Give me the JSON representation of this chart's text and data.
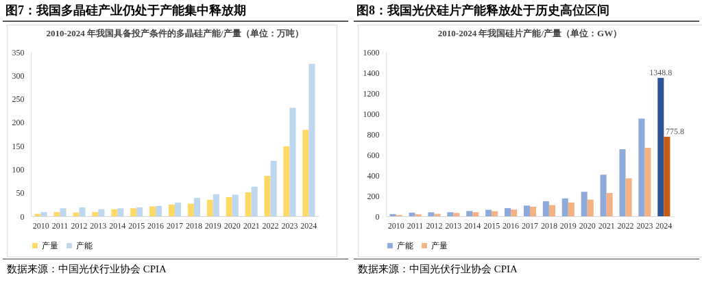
{
  "chart_data": [
    {
      "type": "bar",
      "title": "图7：我国多晶硅产业仍处于产能集中释放期",
      "subtitle": "2010-2024 年我国具备投产条件的多晶硅产能/产量（单位：万吨）",
      "categories": [
        "2010",
        "2011",
        "2012",
        "2013",
        "2014",
        "2015",
        "2016",
        "2017",
        "2018",
        "2019",
        "2020",
        "2021",
        "2022",
        "2023",
        "2024"
      ],
      "series": [
        {
          "name": "产量",
          "color": "#ffd966",
          "values": [
            5,
            9,
            8,
            9,
            15,
            17,
            21,
            25,
            27,
            35,
            41,
            51,
            86,
            149,
            184
          ]
        },
        {
          "name": "产能",
          "color": "#bdd7ee",
          "values": [
            9,
            17,
            19,
            15,
            17,
            19,
            22,
            29,
            39,
            47,
            46,
            63,
            118,
            231,
            325
          ]
        }
      ],
      "ylim": [
        0,
        350
      ],
      "yticks": [
        0,
        50,
        100,
        150,
        200,
        250,
        300,
        350
      ],
      "grid": false,
      "legend": "bottom",
      "annotations": [
        "数据来源：中国光伏行业协会 CPIA"
      ]
    },
    {
      "type": "bar",
      "title": "图8：我国光伏硅片产能释放处于历史高位区间",
      "subtitle": "2010-2024 年我国硅片产能/产量（单位：GW）",
      "categories": [
        "2010",
        "2011",
        "2012",
        "2013",
        "2014",
        "2015",
        "2016",
        "2017",
        "2018",
        "2019",
        "2020",
        "2021",
        "2022",
        "2023",
        "2024"
      ],
      "series": [
        {
          "name": "产能",
          "color": "#8eaadb",
          "colors": [
            "#8eaadb",
            "#8eaadb",
            "#8eaadb",
            "#8eaadb",
            "#8eaadb",
            "#8eaadb",
            "#8eaadb",
            "#8eaadb",
            "#8eaadb",
            "#8eaadb",
            "#8eaadb",
            "#8eaadb",
            "#8eaadb",
            "#8eaadb",
            "#2f5597"
          ],
          "values": [
            21,
            35,
            39,
            39,
            51,
            63,
            79,
            104,
            146,
            174,
            238,
            405,
            653,
            952,
            1348.8
          ],
          "value_labels": [
            null,
            null,
            null,
            null,
            null,
            null,
            null,
            null,
            null,
            null,
            null,
            null,
            null,
            null,
            "1348.8"
          ]
        },
        {
          "name": "产量",
          "color": "#f4b183",
          "colors": [
            "#f4b183",
            "#f4b183",
            "#f4b183",
            "#f4b183",
            "#f4b183",
            "#f4b183",
            "#f4b183",
            "#f4b183",
            "#f4b183",
            "#f4b183",
            "#f4b183",
            "#f4b183",
            "#f4b183",
            "#f4b183",
            "#c55a11"
          ],
          "values": [
            12,
            19,
            23,
            32,
            39,
            49,
            65,
            93,
            109,
            134,
            162,
            227,
            370,
            667,
            775.8
          ],
          "value_labels": [
            null,
            null,
            null,
            null,
            null,
            null,
            null,
            null,
            null,
            null,
            null,
            null,
            null,
            null,
            "775.8"
          ]
        }
      ],
      "ylim": [
        0,
        1600
      ],
      "yticks": [
        0,
        200,
        400,
        600,
        800,
        1000,
        1200,
        1400,
        1600
      ],
      "grid": false,
      "legend": "bottom",
      "annotations": [
        "数据来源：中国光伏行业协会 CPIA"
      ]
    }
  ]
}
